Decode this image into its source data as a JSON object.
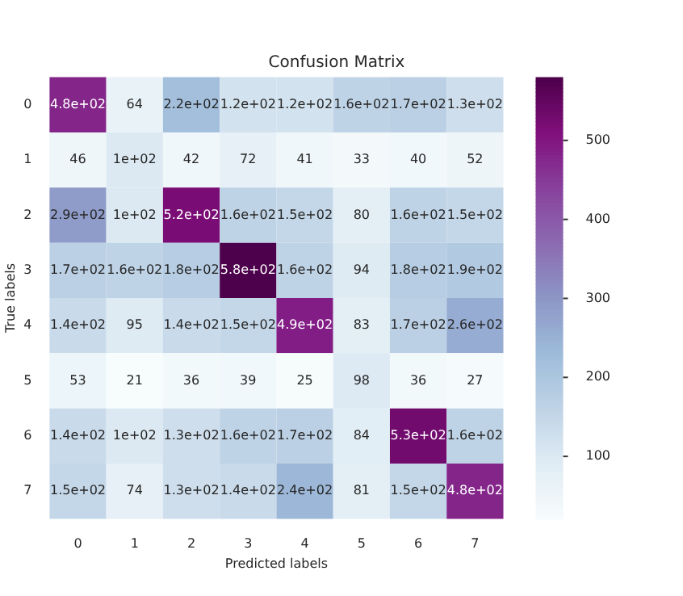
{
  "chart_data": {
    "type": "heatmap",
    "title": "Confusion Matrix",
    "xlabel": "Predicted labels",
    "ylabel": "True labels",
    "categories": [
      "0",
      "1",
      "2",
      "3",
      "4",
      "5",
      "6",
      "7"
    ],
    "y_categories": [
      "0",
      "1",
      "2",
      "3",
      "4",
      "5",
      "6",
      "7"
    ],
    "cells": [
      [
        480,
        64,
        220,
        120,
        120,
        160,
        170,
        130
      ],
      [
        46,
        100,
        42,
        72,
        41,
        33,
        40,
        52
      ],
      [
        290,
        100,
        520,
        160,
        150,
        80,
        160,
        150
      ],
      [
        170,
        160,
        180,
        580,
        160,
        94,
        180,
        190
      ],
      [
        140,
        95,
        140,
        150,
        490,
        83,
        170,
        260
      ],
      [
        53,
        21,
        36,
        39,
        25,
        98,
        36,
        27
      ],
      [
        140,
        100,
        130,
        160,
        170,
        84,
        530,
        160
      ],
      [
        150,
        74,
        130,
        140,
        240,
        81,
        150,
        480
      ]
    ],
    "cell_labels": [
      [
        "4.8e+02",
        "64",
        "2.2e+02",
        "1.2e+02",
        "1.2e+02",
        "1.6e+02",
        "1.7e+02",
        "1.3e+02"
      ],
      [
        "46",
        "1e+02",
        "42",
        "72",
        "41",
        "33",
        "40",
        "52"
      ],
      [
        "2.9e+02",
        "1e+02",
        "5.2e+02",
        "1.6e+02",
        "1.5e+02",
        "80",
        "1.6e+02",
        "1.5e+02"
      ],
      [
        "1.7e+02",
        "1.6e+02",
        "1.8e+02",
        "5.8e+02",
        "1.6e+02",
        "94",
        "1.8e+02",
        "1.9e+02"
      ],
      [
        "1.4e+02",
        "95",
        "1.4e+02",
        "1.5e+02",
        "4.9e+02",
        "83",
        "1.7e+02",
        "2.6e+02"
      ],
      [
        "53",
        "21",
        "36",
        "39",
        "25",
        "98",
        "36",
        "27"
      ],
      [
        "1.4e+02",
        "1e+02",
        "1.3e+02",
        "1.6e+02",
        "1.7e+02",
        "84",
        "5.3e+02",
        "1.6e+02"
      ],
      [
        "1.5e+02",
        "74",
        "1.3e+02",
        "1.4e+02",
        "2.4e+02",
        "81",
        "1.5e+02",
        "4.8e+02"
      ]
    ],
    "clim": [
      21,
      580
    ],
    "cticks": [
      100,
      200,
      300,
      400,
      500
    ]
  }
}
